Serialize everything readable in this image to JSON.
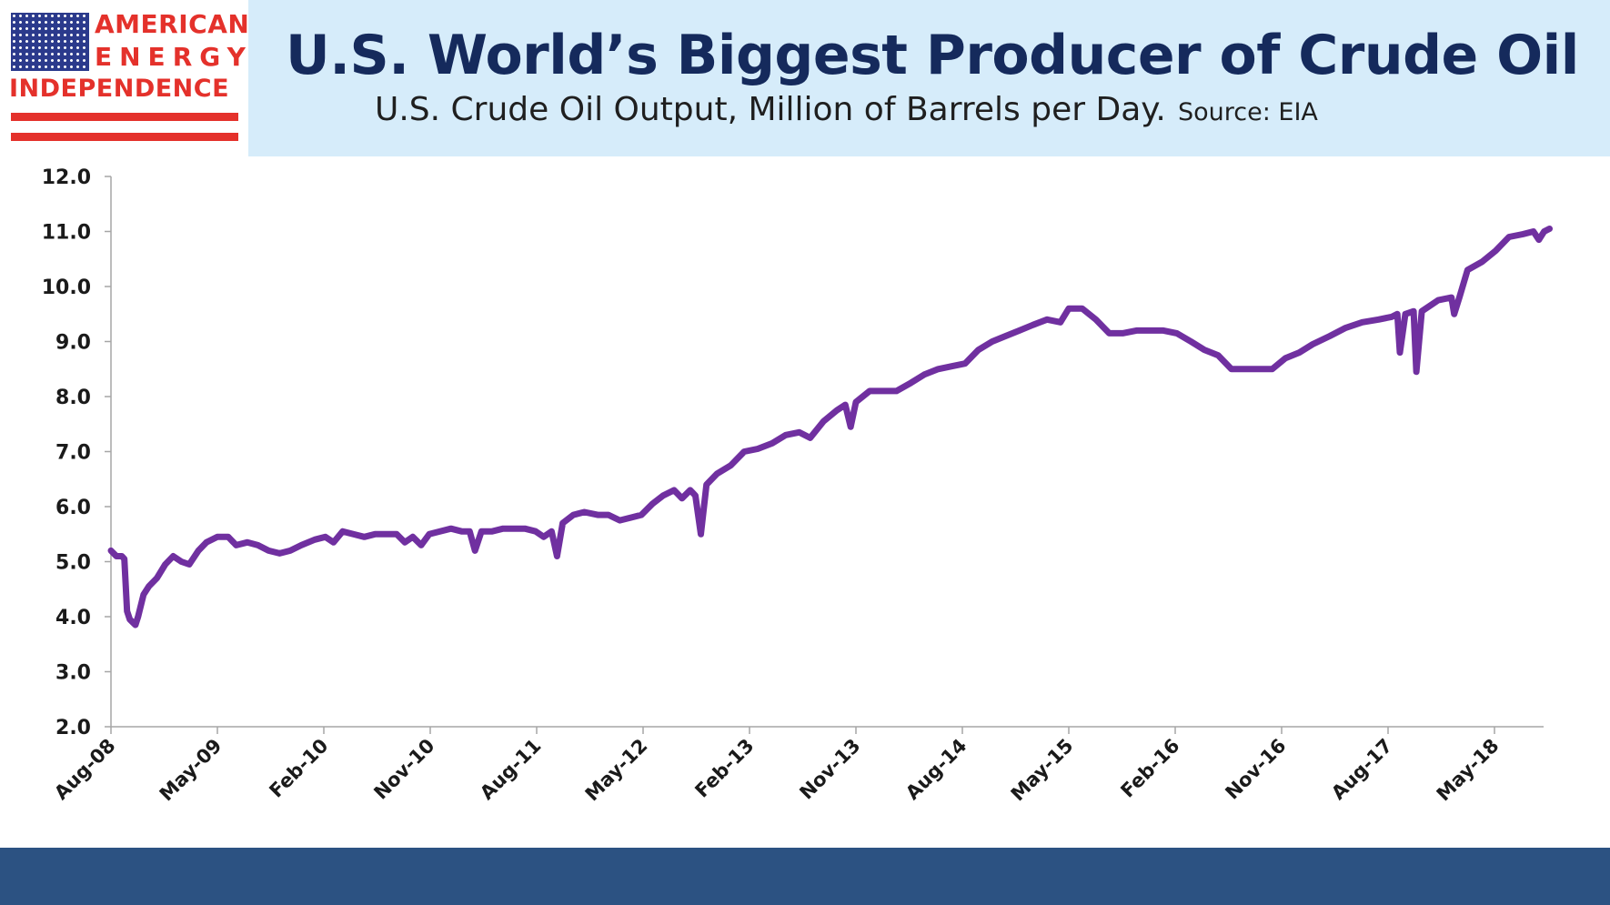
{
  "logo": {
    "line1": "AMERICAN",
    "line2": "ENERGY",
    "line3": "INDEPENDENCE"
  },
  "header": {
    "title": "U.S. World’s Biggest Producer of Crude Oil",
    "subtitle": "U.S. Crude Oil Output, Million of Barrels per Day.",
    "source": "Source: EIA"
  },
  "colors": {
    "header_band": "#d6ecfa",
    "title": "#152a5c",
    "logo_red": "#e4312b",
    "logo_blue": "#2b3a8c",
    "line": "#7030a0",
    "footer": "#2c5282"
  },
  "chart_data": {
    "type": "line",
    "title": "",
    "xlabel": "",
    "ylabel": "",
    "ylim": [
      2.0,
      12.0
    ],
    "yticks": [
      "2.0",
      "3.0",
      "4.0",
      "5.0",
      "6.0",
      "7.0",
      "8.0",
      "9.0",
      "10.0",
      "11.0",
      "12.0"
    ],
    "xlim": [
      "2008-08",
      "2018-10"
    ],
    "xticks": [
      "Aug-08",
      "May-09",
      "Feb-10",
      "Nov-10",
      "Aug-11",
      "May-12",
      "Feb-13",
      "Nov-13",
      "Aug-14",
      "May-15",
      "Feb-16",
      "Nov-16",
      "Aug-17",
      "May-18"
    ],
    "grid": false,
    "series": [
      {
        "color": "#7030a0",
        "points": [
          [
            "2008-08-01",
            5.2
          ],
          [
            "2008-08-15",
            5.1
          ],
          [
            "2008-08-29",
            5.1
          ],
          [
            "2008-09-05",
            5.05
          ],
          [
            "2008-09-12",
            4.1
          ],
          [
            "2008-09-19",
            3.95
          ],
          [
            "2008-09-26",
            3.9
          ],
          [
            "2008-10-03",
            3.85
          ],
          [
            "2008-10-10",
            4.0
          ],
          [
            "2008-10-24",
            4.4
          ],
          [
            "2008-11-07",
            4.55
          ],
          [
            "2008-11-28",
            4.7
          ],
          [
            "2008-12-19",
            4.95
          ],
          [
            "2009-01-09",
            5.1
          ],
          [
            "2009-01-30",
            5.0
          ],
          [
            "2009-02-20",
            4.95
          ],
          [
            "2009-03-13",
            5.2
          ],
          [
            "2009-04-03",
            5.35
          ],
          [
            "2009-05-01",
            5.45
          ],
          [
            "2009-05-29",
            5.45
          ],
          [
            "2009-06-19",
            5.3
          ],
          [
            "2009-07-17",
            5.35
          ],
          [
            "2009-08-14",
            5.3
          ],
          [
            "2009-09-11",
            5.2
          ],
          [
            "2009-10-09",
            5.15
          ],
          [
            "2009-11-06",
            5.2
          ],
          [
            "2009-12-04",
            5.3
          ],
          [
            "2010-01-08",
            5.4
          ],
          [
            "2010-02-05",
            5.45
          ],
          [
            "2010-02-26",
            5.35
          ],
          [
            "2010-03-19",
            5.55
          ],
          [
            "2010-04-16",
            5.5
          ],
          [
            "2010-05-14",
            5.45
          ],
          [
            "2010-06-11",
            5.5
          ],
          [
            "2010-07-09",
            5.5
          ],
          [
            "2010-08-06",
            5.5
          ],
          [
            "2010-08-27",
            5.35
          ],
          [
            "2010-09-17",
            5.45
          ],
          [
            "2010-10-08",
            5.3
          ],
          [
            "2010-10-29",
            5.5
          ],
          [
            "2010-11-26",
            5.55
          ],
          [
            "2010-12-24",
            5.6
          ],
          [
            "2011-01-21",
            5.55
          ],
          [
            "2011-02-11",
            5.55
          ],
          [
            "2011-02-25",
            5.2
          ],
          [
            "2011-03-11",
            5.55
          ],
          [
            "2011-04-08",
            5.55
          ],
          [
            "2011-05-06",
            5.6
          ],
          [
            "2011-06-03",
            5.6
          ],
          [
            "2011-07-01",
            5.6
          ],
          [
            "2011-07-29",
            5.55
          ],
          [
            "2011-08-19",
            5.45
          ],
          [
            "2011-09-09",
            5.55
          ],
          [
            "2011-09-23",
            5.1
          ],
          [
            "2011-10-07",
            5.7
          ],
          [
            "2011-11-04",
            5.85
          ],
          [
            "2011-12-02",
            5.9
          ],
          [
            "2012-01-06",
            5.85
          ],
          [
            "2012-02-03",
            5.85
          ],
          [
            "2012-03-02",
            5.75
          ],
          [
            "2012-03-30",
            5.8
          ],
          [
            "2012-04-27",
            5.85
          ],
          [
            "2012-05-25",
            6.05
          ],
          [
            "2012-06-22",
            6.2
          ],
          [
            "2012-07-20",
            6.3
          ],
          [
            "2012-08-10",
            6.15
          ],
          [
            "2012-08-31",
            6.3
          ],
          [
            "2012-09-14",
            6.2
          ],
          [
            "2012-09-28",
            5.5
          ],
          [
            "2012-10-12",
            6.4
          ],
          [
            "2012-11-09",
            6.6
          ],
          [
            "2012-12-14",
            6.75
          ],
          [
            "2013-01-18",
            7.0
          ],
          [
            "2013-02-22",
            7.05
          ],
          [
            "2013-03-29",
            7.15
          ],
          [
            "2013-05-03",
            7.3
          ],
          [
            "2013-06-07",
            7.35
          ],
          [
            "2013-07-05",
            7.25
          ],
          [
            "2013-08-09",
            7.55
          ],
          [
            "2013-09-13",
            7.75
          ],
          [
            "2013-10-04",
            7.85
          ],
          [
            "2013-10-18",
            7.45
          ],
          [
            "2013-11-01",
            7.9
          ],
          [
            "2013-12-06",
            8.1
          ],
          [
            "2014-01-10",
            8.1
          ],
          [
            "2014-02-14",
            8.1
          ],
          [
            "2014-03-21",
            8.25
          ],
          [
            "2014-04-25",
            8.4
          ],
          [
            "2014-05-30",
            8.5
          ],
          [
            "2014-07-04",
            8.55
          ],
          [
            "2014-08-08",
            8.6
          ],
          [
            "2014-09-12",
            8.85
          ],
          [
            "2014-10-17",
            9.0
          ],
          [
            "2014-11-21",
            9.1
          ],
          [
            "2014-12-26",
            9.2
          ],
          [
            "2015-01-30",
            9.3
          ],
          [
            "2015-03-06",
            9.4
          ],
          [
            "2015-04-10",
            9.35
          ],
          [
            "2015-05-01",
            9.6
          ],
          [
            "2015-06-05",
            9.6
          ],
          [
            "2015-07-10",
            9.4
          ],
          [
            "2015-08-14",
            9.15
          ],
          [
            "2015-09-18",
            9.15
          ],
          [
            "2015-10-23",
            9.2
          ],
          [
            "2015-11-27",
            9.2
          ],
          [
            "2016-01-01",
            9.2
          ],
          [
            "2016-02-05",
            9.15
          ],
          [
            "2016-03-11",
            9.0
          ],
          [
            "2016-04-15",
            8.85
          ],
          [
            "2016-05-20",
            8.75
          ],
          [
            "2016-06-24",
            8.5
          ],
          [
            "2016-07-29",
            8.5
          ],
          [
            "2016-09-02",
            8.5
          ],
          [
            "2016-10-07",
            8.5
          ],
          [
            "2016-11-11",
            8.7
          ],
          [
            "2016-12-16",
            8.8
          ],
          [
            "2017-01-20",
            8.95
          ],
          [
            "2017-03-03",
            9.1
          ],
          [
            "2017-04-14",
            9.25
          ],
          [
            "2017-05-26",
            9.35
          ],
          [
            "2017-07-07",
            9.4
          ],
          [
            "2017-08-11",
            9.45
          ],
          [
            "2017-08-25",
            9.5
          ],
          [
            "2017-09-01",
            8.8
          ],
          [
            "2017-09-15",
            9.5
          ],
          [
            "2017-10-06",
            9.55
          ],
          [
            "2017-10-13",
            8.45
          ],
          [
            "2017-10-27",
            9.55
          ],
          [
            "2017-12-08",
            9.75
          ],
          [
            "2018-01-12",
            9.8
          ],
          [
            "2018-01-19",
            9.5
          ],
          [
            "2018-02-02",
            9.8
          ],
          [
            "2018-02-23",
            10.3
          ],
          [
            "2018-03-30",
            10.45
          ],
          [
            "2018-05-04",
            10.65
          ],
          [
            "2018-06-08",
            10.9
          ],
          [
            "2018-07-13",
            10.95
          ],
          [
            "2018-08-10",
            11.0
          ],
          [
            "2018-08-24",
            10.85
          ],
          [
            "2018-09-07",
            11.0
          ],
          [
            "2018-09-21",
            11.05
          ]
        ]
      }
    ]
  }
}
